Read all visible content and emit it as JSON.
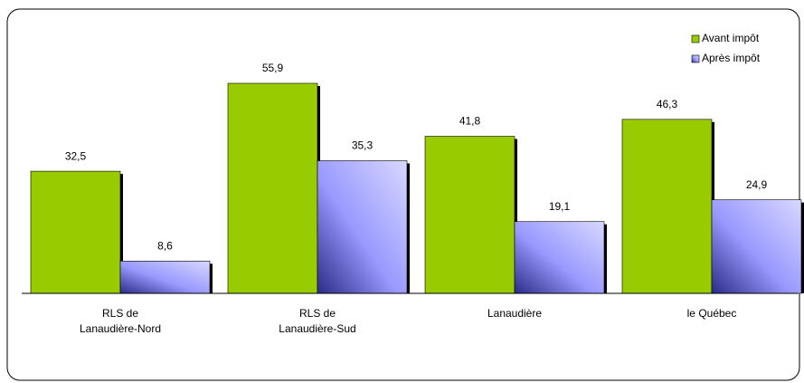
{
  "chart_data": {
    "type": "bar",
    "categories": [
      "RLS de\nLanaudière-Nord",
      "RLS de\nLanaudière-Sud",
      "Lanaudière",
      "le Québec"
    ],
    "series": [
      {
        "name": "Avant impôt",
        "color": "#99cc00",
        "values": [
          32.5,
          55.9,
          41.8,
          46.3
        ],
        "value_labels": [
          "32,5",
          "55,9",
          "41,8",
          "46,3"
        ]
      },
      {
        "name": "Après impôt",
        "color": "#9999ff",
        "values": [
          8.6,
          35.3,
          19.1,
          24.9
        ],
        "value_labels": [
          "8,6",
          "35,3",
          "19,1",
          "24,9"
        ]
      }
    ],
    "legend": "upper right"
  }
}
